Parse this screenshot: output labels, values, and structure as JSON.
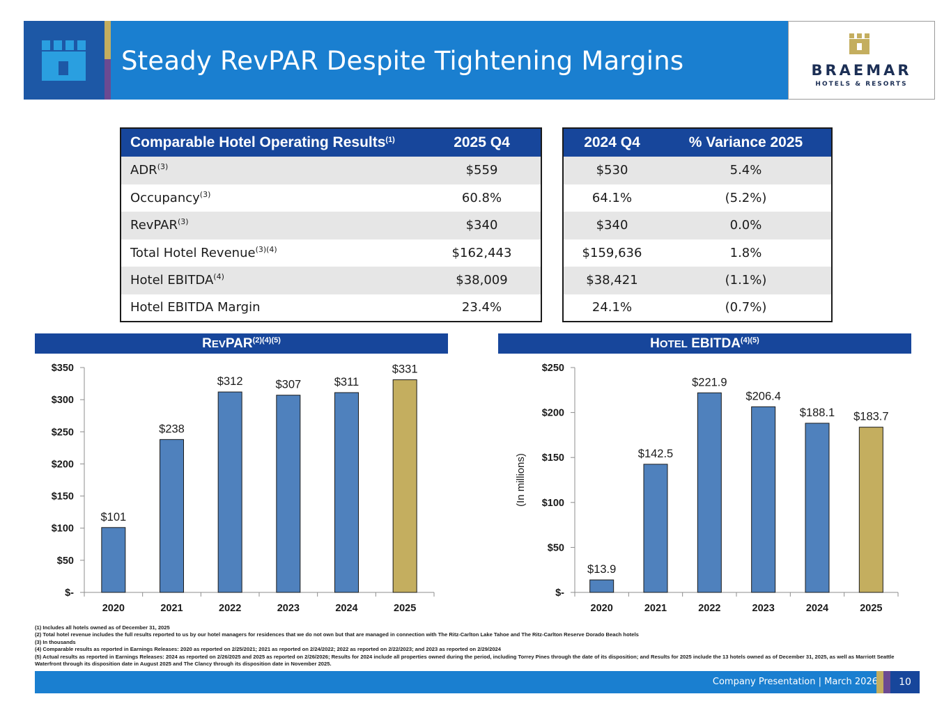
{
  "header": {
    "title": "Steady RevPAR Despite Tightening Margins",
    "brand_name": "BRAEMAR",
    "brand_sub": "HOTELS & RESORTS"
  },
  "table_main": {
    "headers": [
      "Comparable Hotel Operating Results",
      "2025 Q4"
    ],
    "header_sup": "(1)",
    "rows": [
      {
        "label": "ADR",
        "sup": "(3)",
        "q4_2025": "$559"
      },
      {
        "label": "Occupancy",
        "sup": "(3)",
        "q4_2025": "60.8%"
      },
      {
        "label": "RevPAR",
        "sup": "(3)",
        "q4_2025": "$340"
      },
      {
        "label": "Total Hotel Revenue",
        "sup": "(3)(4)",
        "q4_2025": "$162,443"
      },
      {
        "label": "Hotel EBITDA",
        "sup": "(4)",
        "q4_2025": "$38,009"
      },
      {
        "label": "Hotel EBITDA Margin",
        "sup": "",
        "q4_2025": "23.4%"
      }
    ]
  },
  "table_compare": {
    "headers": [
      "2024 Q4",
      "% Variance 2025"
    ],
    "rows": [
      {
        "q4_2024": "$530",
        "variance": "5.4%"
      },
      {
        "q4_2024": "64.1%",
        "variance": "(5.2%)"
      },
      {
        "q4_2024": "$340",
        "variance": "0.0%"
      },
      {
        "q4_2024": "$159,636",
        "variance": "1.8%"
      },
      {
        "q4_2024": "$38,421",
        "variance": "(1.1%)"
      },
      {
        "q4_2024": "24.1%",
        "variance": "(0.7%)"
      }
    ]
  },
  "chart_headers": {
    "revpar_first": "R",
    "revpar_rest": "EV",
    "revpar_tail": "PAR",
    "revpar_sup": "(2)(4)(5)",
    "ebitda_first": "H",
    "ebitda_rest": "OTEL",
    "ebitda_tail": "EBITDA",
    "ebitda_sup": "(4)(5)"
  },
  "colors": {
    "bar": "#4f81bd",
    "bar_highlight": "#c4ae5f",
    "navy": "#17469b",
    "blue": "#1a7fd0"
  },
  "chart_data": [
    {
      "type": "bar",
      "title": "RevPAR",
      "categories": [
        "2020",
        "2021",
        "2022",
        "2023",
        "2024",
        "2025"
      ],
      "values": [
        101,
        238,
        312,
        307,
        311,
        331
      ],
      "data_labels": [
        "$101",
        "$238",
        "$312",
        "$307",
        "$311",
        "$331"
      ],
      "ylim": [
        0,
        350
      ],
      "yticks": [
        0,
        50,
        100,
        150,
        200,
        250,
        300,
        350
      ],
      "ytick_labels": [
        "$-",
        "$50",
        "$100",
        "$150",
        "$200",
        "$250",
        "$300",
        "$350"
      ],
      "ylabel": "",
      "highlight_index": 5
    },
    {
      "type": "bar",
      "title": "Hotel EBITDA",
      "categories": [
        "2020",
        "2021",
        "2022",
        "2023",
        "2024",
        "2025"
      ],
      "values": [
        13.9,
        142.5,
        221.9,
        206.4,
        188.1,
        183.7
      ],
      "data_labels": [
        "$13.9",
        "$142.5",
        "$221.9",
        "$206.4",
        "$188.1",
        "$183.7"
      ],
      "ylim": [
        0,
        250
      ],
      "yticks": [
        0,
        50,
        100,
        150,
        200,
        250
      ],
      "ytick_labels": [
        "$-",
        "$50",
        "$100",
        "$150",
        "$200",
        "$250"
      ],
      "ylabel": "(In millions)",
      "highlight_index": 5
    }
  ],
  "footnotes": [
    "(1) Includes all hotels owned as of December 31, 2025",
    "(2) Total hotel revenue includes the full results reported to us by our hotel managers for residences that we do not own but that are managed in connection with The Ritz-Carlton Lake Tahoe and The Ritz-Carlton Reserve Dorado Beach hotels",
    "(3) In thousands",
    "(4) Comparable results as reported in Earnings Releases: 2020 as reported on 2/25/2021; 2021 as reported on 2/24/2022; 2022 as reported on 2/22/2023; and 2023 as reported on 2/29/2024",
    "(5) Actual results as reported in Earnings Releases: 2024 as reported on 2/26/2025 and 2025 as reported on 2/26/2026; Results for 2024 include all properties owned during the period, including Torrey Pines through the date of its disposition; and Results for 2025 include the 13 hotels owned as of December 31, 2025, as well as Marriott Seattle Waterfront through its disposition date in August 2025 and The Clancy through its disposition date in November 2025."
  ],
  "footer": {
    "text": "Company Presentation  |  March 2026",
    "page_number": "10"
  }
}
